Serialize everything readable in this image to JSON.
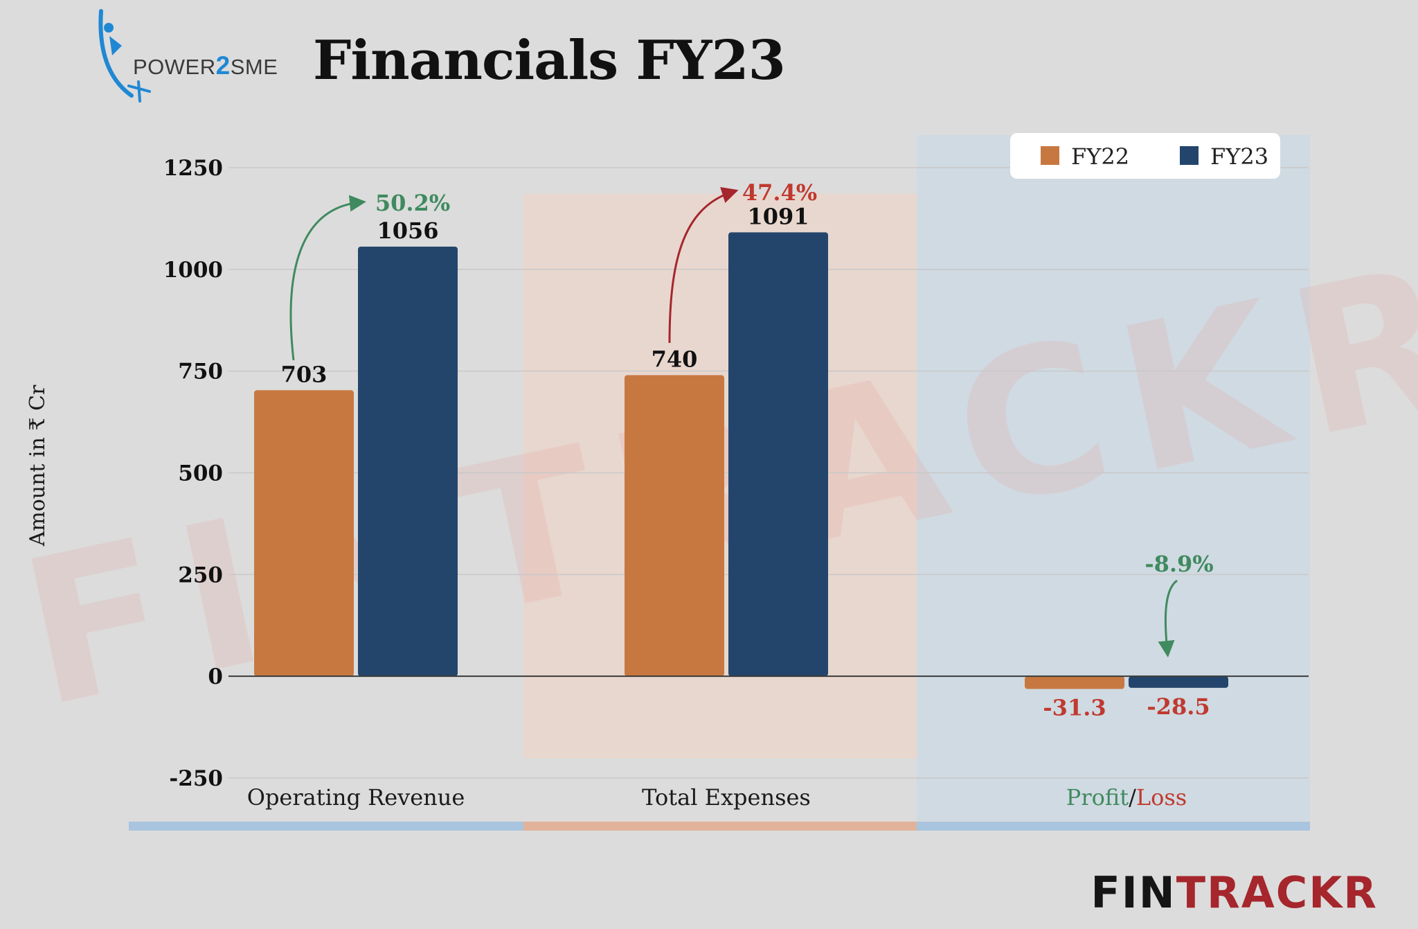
{
  "brand": {
    "logo_prefix": "POWER",
    "logo_digit": "2",
    "logo_suffix": "SME"
  },
  "header": {
    "title": "Financials FY23"
  },
  "footer": {
    "logo_part1": "FIN",
    "logo_part2": "TRACKR"
  },
  "watermark": "FINTRACKR",
  "colors": {
    "fy22": "#c77840",
    "fy23": "#24456b",
    "positive": "#3f8a5f",
    "negative": "#c0392f",
    "arrow_negative": "#a5262c",
    "band_blue": "#a9c4de",
    "band_orange": "#e0b29a"
  },
  "chart_data": {
    "type": "bar",
    "title": "Financials FY23",
    "ylabel": "Amount in ₹ Cr",
    "xlabel": "",
    "ylim": [
      -250,
      1250
    ],
    "yticks": [
      1250,
      1000,
      750,
      500,
      250,
      0,
      -250
    ],
    "grid": true,
    "legend_position": "top-right",
    "categories": [
      "Operating Revenue",
      "Total Expenses",
      "Profit/Loss"
    ],
    "category_parts": {
      "profit_loss": {
        "profit": "Profit",
        "slash": "/",
        "loss": "Loss"
      }
    },
    "series": [
      {
        "name": "FY22",
        "values": [
          703,
          740,
          -31.3
        ],
        "labels": [
          "703",
          "740",
          "-31.3"
        ]
      },
      {
        "name": "FY23",
        "values": [
          1056,
          1091,
          -28.5
        ],
        "labels": [
          "1056",
          "1091",
          "-28.5"
        ]
      }
    ],
    "annotations": [
      {
        "category": "Operating Revenue",
        "text": "50.2%",
        "tone": "positive"
      },
      {
        "category": "Total Expenses",
        "text": "47.4%",
        "tone": "negative"
      },
      {
        "category": "Profit/Loss",
        "text": "-8.9%",
        "tone": "positive"
      }
    ]
  }
}
